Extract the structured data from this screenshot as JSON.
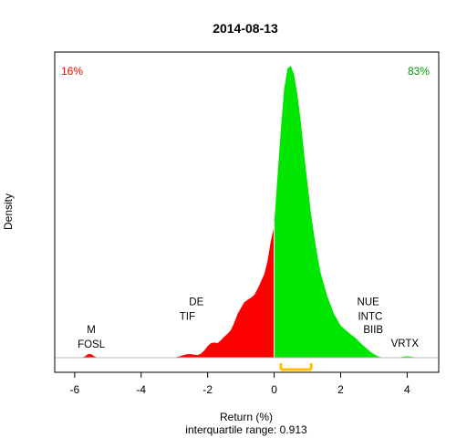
{
  "chart_data": {
    "type": "area",
    "title": "2014-08-13",
    "xlabel": "Return (%)",
    "ylabel": "Density",
    "subtitle": "interquartile range: 0.913",
    "xlim": [
      -6.6,
      4.95
    ],
    "xticks": [
      "-6",
      "-4",
      "-2",
      "0",
      "2",
      "4"
    ],
    "pct_negative": "16%",
    "pct_positive": "83%",
    "colors": {
      "negative": "#ff0000",
      "positive": "#00e600",
      "iqr": "#ffc000",
      "baseline": "#bebebe"
    },
    "iqr": [
      0.2,
      1.113
    ],
    "density": {
      "x": [
        -5.8,
        -5.7,
        -5.6,
        -5.5,
        -5.4,
        -5.3,
        -5.2,
        -3,
        -2.9,
        -2.8,
        -2.7,
        -2.6,
        -2.5,
        -2.4,
        -2.3,
        -2.2,
        -2.1,
        -2,
        -1.9,
        -1.8,
        -1.7,
        -1.6,
        -1.5,
        -1.4,
        -1.3,
        -1.2,
        -1.1,
        -1,
        -0.9,
        -0.8,
        -0.7,
        -0.6,
        -0.5,
        -0.4,
        -0.3,
        -0.2,
        -0.1,
        -0.02,
        0,
        0.02,
        0.1,
        0.2,
        0.3,
        0.4,
        0.5,
        0.6,
        0.7,
        0.8,
        0.9,
        1,
        1.1,
        1.2,
        1.3,
        1.4,
        1.5,
        1.6,
        1.7,
        1.8,
        1.9,
        2,
        2.1,
        2.2,
        2.3,
        2.4,
        2.5,
        2.6,
        2.7,
        2.8,
        2.9,
        3,
        3.1,
        3.2,
        3.3,
        3.4,
        3.5,
        3.6,
        3.7,
        3.8,
        3.9,
        4,
        4.1,
        4.2,
        4.3
      ],
      "y": [
        0,
        0.004,
        0.012,
        0.012,
        0.004,
        0,
        0,
        0,
        0.003,
        0.006,
        0.01,
        0.012,
        0.012,
        0.01,
        0.009,
        0.014,
        0.025,
        0.04,
        0.05,
        0.052,
        0.05,
        0.06,
        0.072,
        0.082,
        0.095,
        0.12,
        0.15,
        0.17,
        0.19,
        0.198,
        0.205,
        0.215,
        0.235,
        0.26,
        0.285,
        0.33,
        0.4,
        0.44,
        0.47,
        0.49,
        0.62,
        0.78,
        0.92,
        0.99,
        1,
        0.97,
        0.9,
        0.81,
        0.7,
        0.6,
        0.5,
        0.42,
        0.35,
        0.29,
        0.25,
        0.21,
        0.18,
        0.15,
        0.13,
        0.11,
        0.1,
        0.09,
        0.08,
        0.072,
        0.062,
        0.05,
        0.04,
        0.03,
        0.02,
        0.012,
        0.006,
        0.002,
        0,
        0,
        0,
        0,
        0,
        0.002,
        0.004,
        0.005,
        0.004,
        0.002,
        0
      ]
    },
    "annotations": [
      {
        "text": "M",
        "x": -5.5,
        "y": 0.085
      },
      {
        "text": "FOSL",
        "x": -5.5,
        "y": 0.035
      },
      {
        "text": "DE",
        "x": -2.34,
        "y": 0.18
      },
      {
        "text": "TIF",
        "x": -2.61,
        "y": 0.13
      },
      {
        "text": "NUE",
        "x": 2.83,
        "y": 0.18
      },
      {
        "text": "INTC",
        "x": 2.89,
        "y": 0.13
      },
      {
        "text": "BIIB",
        "x": 2.98,
        "y": 0.084
      },
      {
        "text": "VRTX",
        "x": 3.93,
        "y": 0.037
      }
    ]
  }
}
